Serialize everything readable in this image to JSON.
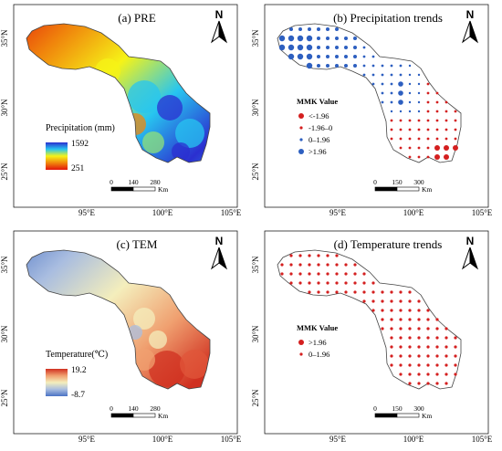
{
  "panels": [
    {
      "id": "a",
      "title": "(a) PRE",
      "kind": "continuous",
      "lat_labels": [
        "35°N",
        "30°N",
        "25°N"
      ],
      "lon_labels": [
        "95°E",
        "100°E",
        "105°E"
      ],
      "legend": {
        "title": "Precipitation (mm)",
        "max": "1592",
        "min": "251",
        "colors": [
          "#2b2fd0",
          "#27c6f0",
          "#f6f317",
          "#f0860c",
          "#e3140c"
        ]
      },
      "scalebar": {
        "ticks": [
          "0",
          "140",
          "280"
        ],
        "unit": "Km"
      }
    },
    {
      "id": "b",
      "title": "(b) Precipitation trends",
      "kind": "trend",
      "lat_labels": [
        "35°N",
        "30°N",
        "25°N"
      ],
      "lon_labels": [
        "95°E",
        "100°E",
        "105°E"
      ],
      "legend": {
        "title": "MMK Value",
        "items": [
          {
            "label": "<-1.96",
            "color": "#d41f1f",
            "size": "large"
          },
          {
            "label": "-1.96–0",
            "color": "#d41f1f",
            "size": "small"
          },
          {
            "label": "0–1.96",
            "color": "#2d5fc0",
            "size": "small"
          },
          {
            "label": ">1.96",
            "color": "#2d5fc0",
            "size": "large"
          }
        ]
      },
      "scalebar": {
        "ticks": [
          "0",
          "150",
          "300"
        ],
        "unit": "Km"
      }
    },
    {
      "id": "c",
      "title": "(c) TEM",
      "kind": "continuous",
      "lat_labels": [
        "35°N",
        "30°N",
        "25°N"
      ],
      "lon_labels": [
        "95°E",
        "100°E",
        "105°E"
      ],
      "legend": {
        "title": "Temperature(℃)",
        "max": "19.2",
        "min": "-8.7",
        "colors": [
          "#d03020",
          "#f0a070",
          "#f4eebc",
          "#a9bde0",
          "#4a72c4"
        ]
      },
      "scalebar": {
        "ticks": [
          "0",
          "140",
          "280"
        ],
        "unit": "Km"
      }
    },
    {
      "id": "d",
      "title": "(d) Temperature trends",
      "kind": "trend",
      "lat_labels": [
        "35°N",
        "30°N",
        "25°N"
      ],
      "lon_labels": [
        "95°E",
        "100°E",
        "105°E"
      ],
      "legend": {
        "title": "MMK Value",
        "items": [
          {
            "label": ">1.96",
            "color": "#d41f1f",
            "size": "large"
          },
          {
            "label": "0–1.96",
            "color": "#d41f1f",
            "size": "small"
          }
        ]
      },
      "scalebar": {
        "ticks": [
          "0",
          "150",
          "300"
        ],
        "unit": "Km"
      }
    }
  ],
  "north_label": "N"
}
